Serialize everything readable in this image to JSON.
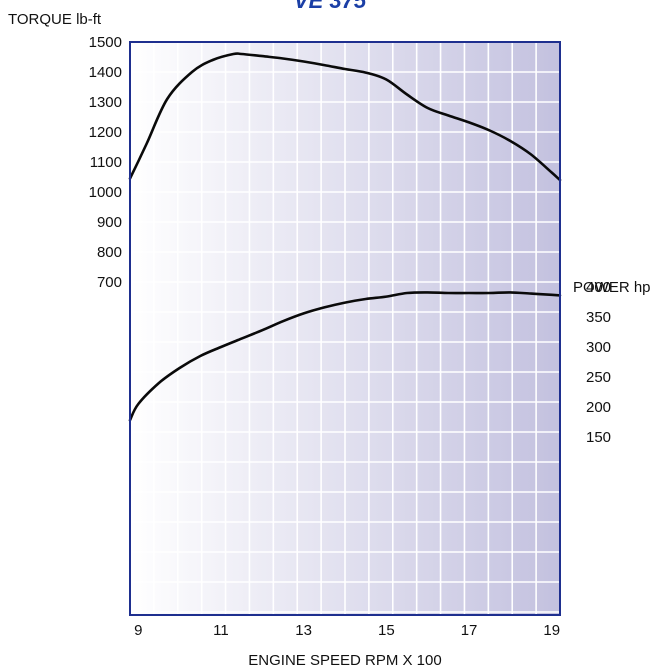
{
  "chart_data": {
    "type": "line",
    "title": "VE 375",
    "xlabel": "ENGINE SPEED RPM X 100",
    "x_ticks": [
      "9",
      "11",
      "13",
      "15",
      "17",
      "19"
    ],
    "xlim": [
      8.8,
      19.2
    ],
    "left_axis": {
      "label": "TORQUE lb-ft",
      "ticks": [
        "1500",
        "1400",
        "1300",
        "1200",
        "1100",
        "1000",
        "900",
        "800",
        "700"
      ],
      "tick_values": [
        1500,
        1400,
        1300,
        1200,
        1100,
        1000,
        900,
        800,
        700
      ]
    },
    "right_axis": {
      "label": "POWER hp",
      "ticks": [
        "400",
        "350",
        "300",
        "250",
        "200",
        "150"
      ],
      "tick_values": [
        400,
        350,
        300,
        250,
        200,
        150
      ]
    },
    "grid": true,
    "series": [
      {
        "name": "",
        "axis": "left",
        "x": [
          8.8,
          9.2,
          9.7,
          10.3,
          10.8,
          11.3,
          11.5,
          12.0,
          12.5,
          13.0,
          13.5,
          14.0,
          14.5,
          15.0,
          15.5,
          16.0,
          16.5,
          17.0,
          17.5,
          18.0,
          18.5,
          19.0,
          19.2
        ],
        "y": [
          1045,
          1160,
          1310,
          1400,
          1440,
          1460,
          1460,
          1453,
          1445,
          1435,
          1423,
          1410,
          1398,
          1375,
          1325,
          1280,
          1255,
          1232,
          1205,
          1170,
          1125,
          1065,
          1040
        ]
      },
      {
        "name": "",
        "axis": "right",
        "x": [
          8.8,
          9.0,
          9.5,
          10.0,
          10.5,
          11.0,
          11.5,
          12.0,
          12.5,
          13.0,
          13.5,
          14.0,
          14.5,
          15.0,
          15.5,
          16.0,
          16.5,
          17.0,
          17.5,
          18.0,
          18.5,
          19.0,
          19.2
        ],
        "y": [
          178,
          205,
          240,
          265,
          285,
          300,
          314,
          328,
          343,
          356,
          366,
          374,
          380,
          384,
          390,
          391,
          390,
          390,
          390,
          391,
          389,
          387,
          386
        ]
      }
    ]
  }
}
